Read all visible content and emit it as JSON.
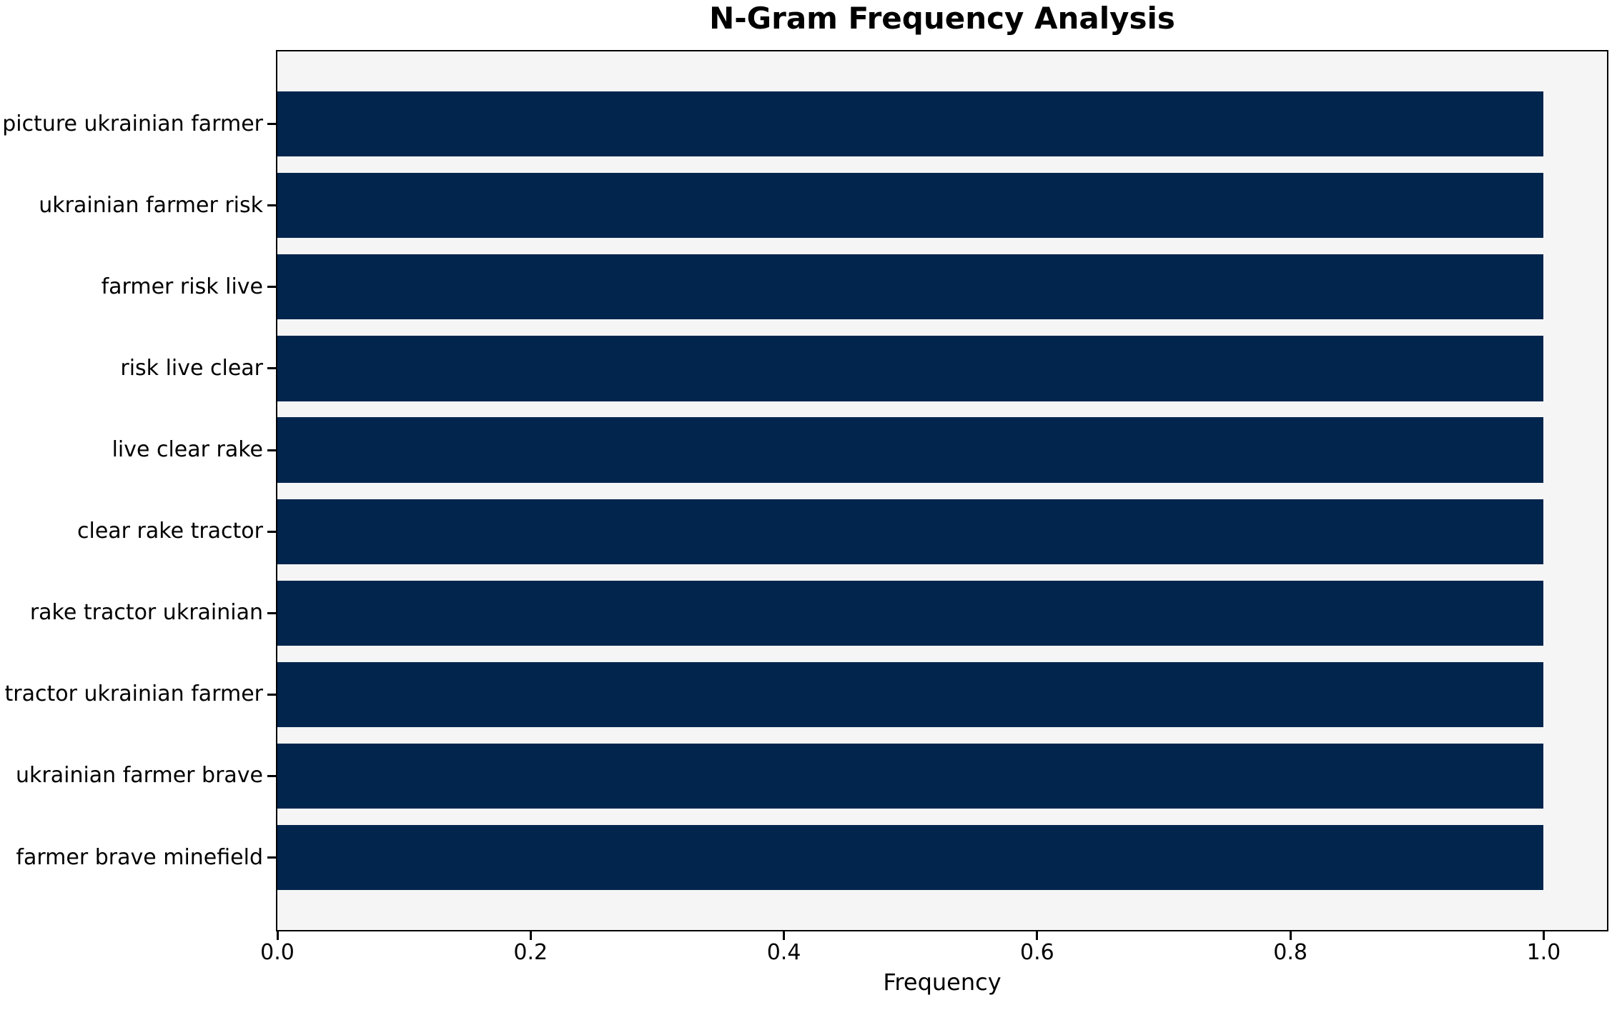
{
  "chart_data": {
    "type": "bar",
    "orientation": "horizontal",
    "title": "N-Gram Frequency Analysis",
    "xlabel": "Frequency",
    "ylabel": "",
    "categories": [
      "picture ukrainian farmer",
      "ukrainian farmer risk",
      "farmer risk live",
      "risk live clear",
      "live clear rake",
      "clear rake tractor",
      "rake tractor ukrainian",
      "tractor ukrainian farmer",
      "ukrainian farmer brave",
      "farmer brave minefield"
    ],
    "values": [
      1.0,
      1.0,
      1.0,
      1.0,
      1.0,
      1.0,
      1.0,
      1.0,
      1.0,
      1.0
    ],
    "xlim": [
      0.0,
      1.05
    ],
    "xticks": [
      0.0,
      0.2,
      0.4,
      0.6,
      0.8,
      1.0
    ],
    "xtick_labels": [
      "0.0",
      "0.2",
      "0.4",
      "0.6",
      "0.8",
      "1.0"
    ],
    "grid": false,
    "legend": null,
    "colors": {
      "bar": "#02254d",
      "plot_background": "#f5f5f6",
      "figure_background": "#ffffff",
      "spine": "#000000",
      "text": "#000000"
    }
  }
}
